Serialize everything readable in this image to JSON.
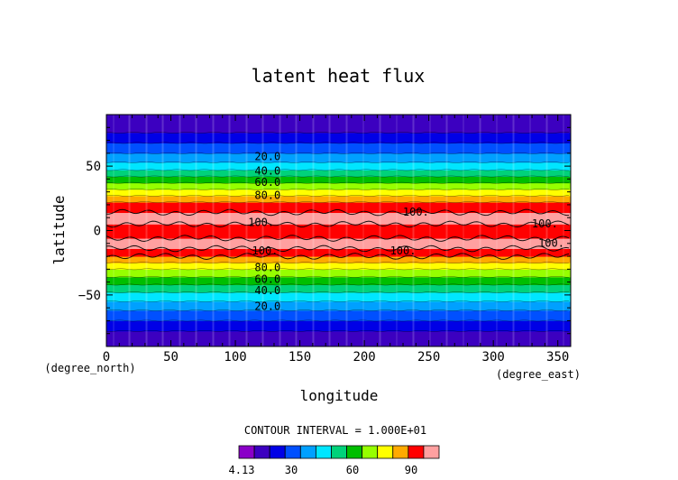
{
  "chart_data": {
    "type": "heatmap",
    "title": "latent heat flux",
    "xlabel": "longitude",
    "ylabel": "latitude",
    "x_unit": "(degree_east)",
    "y_unit": "(degree_north)",
    "xlim": [
      0,
      360
    ],
    "ylim": [
      -90,
      90
    ],
    "x_ticks": [
      0,
      50,
      100,
      150,
      200,
      250,
      300,
      350
    ],
    "y_ticks": [
      -50,
      0,
      50
    ],
    "contour_interval_label": "CONTOUR INTERVAL = 1.000E+01",
    "colorbar": {
      "tick_labels": [
        "4.13",
        "30",
        "60",
        "90"
      ],
      "tick_values": [
        4.13,
        30,
        60,
        90
      ],
      "levels": [
        4.13,
        10,
        20,
        30,
        40,
        50,
        60,
        70,
        80,
        90,
        100,
        110
      ],
      "colors": [
        "#8a00c8",
        "#3c00c0",
        "#0000e6",
        "#0050ff",
        "#00a0ff",
        "#00e6ff",
        "#00d27a",
        "#00be00",
        "#96ff00",
        "#ffff00",
        "#ffaa00",
        "#ff0000",
        "#ffa0a0"
      ]
    },
    "bands": [
      {
        "lat_min": -90,
        "lat_max": -78,
        "value": 4.13
      },
      {
        "lat_min": -78,
        "lat_max": -70,
        "value": 10
      },
      {
        "lat_min": -70,
        "lat_max": -62,
        "value": 20
      },
      {
        "lat_min": -62,
        "lat_max": -55,
        "value": 30
      },
      {
        "lat_min": -55,
        "lat_max": -48,
        "value": 40
      },
      {
        "lat_min": -48,
        "lat_max": -42,
        "value": 50
      },
      {
        "lat_min": -42,
        "lat_max": -36,
        "value": 60
      },
      {
        "lat_min": -36,
        "lat_max": -30,
        "value": 70
      },
      {
        "lat_min": -30,
        "lat_max": -25,
        "value": 80
      },
      {
        "lat_min": -25,
        "lat_max": -20,
        "value": 90
      },
      {
        "lat_min": -20,
        "lat_max": -14,
        "value": 100
      },
      {
        "lat_min": -14,
        "lat_max": -6,
        "value": 110
      },
      {
        "lat_min": -6,
        "lat_max": 5,
        "value": 100
      },
      {
        "lat_min": 5,
        "lat_max": 14,
        "value": 110
      },
      {
        "lat_min": 14,
        "lat_max": 22,
        "value": 100
      },
      {
        "lat_min": 22,
        "lat_max": 27,
        "value": 90
      },
      {
        "lat_min": 27,
        "lat_max": 32,
        "value": 80
      },
      {
        "lat_min": 32,
        "lat_max": 37,
        "value": 70
      },
      {
        "lat_min": 37,
        "lat_max": 42,
        "value": 60
      },
      {
        "lat_min": 42,
        "lat_max": 47,
        "value": 50
      },
      {
        "lat_min": 47,
        "lat_max": 53,
        "value": 40
      },
      {
        "lat_min": 53,
        "lat_max": 60,
        "value": 30
      },
      {
        "lat_min": 60,
        "lat_max": 68,
        "value": 20
      },
      {
        "lat_min": 68,
        "lat_max": 76,
        "value": 10
      },
      {
        "lat_min": 76,
        "lat_max": 90,
        "value": 4.13
      }
    ],
    "contour_labels": [
      {
        "text": "20.0",
        "lon": 125,
        "lat": 58
      },
      {
        "text": "40.0",
        "lon": 125,
        "lat": 47
      },
      {
        "text": "60.0",
        "lon": 125,
        "lat": 38
      },
      {
        "text": "80.0",
        "lon": 125,
        "lat": 28
      },
      {
        "text": "100.",
        "lon": 120,
        "lat": 7
      },
      {
        "text": "100.",
        "lon": 240,
        "lat": 15
      },
      {
        "text": "100.",
        "lon": 340,
        "lat": 6
      },
      {
        "text": "100.",
        "lon": 345,
        "lat": -9
      },
      {
        "text": "100.",
        "lon": 123,
        "lat": -15
      },
      {
        "text": "100.",
        "lon": 230,
        "lat": -15
      },
      {
        "text": "80.0",
        "lon": 125,
        "lat": -28
      },
      {
        "text": "60.0",
        "lon": 125,
        "lat": -37
      },
      {
        "text": "40.0",
        "lon": 125,
        "lat": -46
      },
      {
        "text": "20.0",
        "lon": 125,
        "lat": -58
      }
    ]
  }
}
